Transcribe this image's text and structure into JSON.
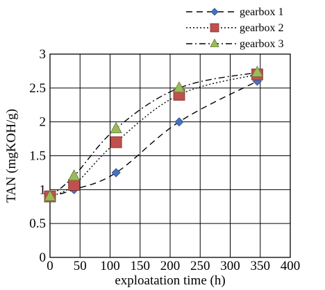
{
  "chart_data": {
    "type": "line",
    "xlabel": "exploatation time (h)",
    "ylabel": "TAN (mgKOH/g)",
    "xlim": [
      0,
      400
    ],
    "ylim": [
      0,
      3
    ],
    "xticks": [
      0,
      50,
      100,
      150,
      200,
      250,
      300,
      350,
      400
    ],
    "yticks": [
      0,
      0.5,
      1,
      1.5,
      2,
      2.5,
      3
    ],
    "xtick_labels": [
      "0",
      "50",
      "100",
      "150",
      "200",
      "250",
      "300",
      "350",
      "400"
    ],
    "ytick_labels": [
      "0",
      "0.5",
      "1",
      "1.5",
      "2",
      "2.5",
      "3"
    ],
    "grid": true,
    "legend_position": "top-right, outside plot",
    "series": [
      {
        "name": "gearbox 1",
        "x": [
          0,
          40,
          110,
          215,
          345
        ],
        "y": [
          0.9,
          1.0,
          1.25,
          2.0,
          2.6
        ],
        "marker": "diamond",
        "line": "dashed",
        "color": "#4472C4"
      },
      {
        "name": "gearbox 2",
        "x": [
          0,
          40,
          110,
          215,
          345
        ],
        "y": [
          0.9,
          1.07,
          1.7,
          2.4,
          2.7
        ],
        "marker": "square",
        "line": "dotted",
        "color": "#C0504D"
      },
      {
        "name": "gearbox 3",
        "x": [
          0,
          40,
          110,
          215,
          345
        ],
        "y": [
          0.9,
          1.2,
          1.9,
          2.5,
          2.73
        ],
        "marker": "triangle",
        "line": "dash-dot",
        "color": "#9BBB59"
      }
    ]
  }
}
